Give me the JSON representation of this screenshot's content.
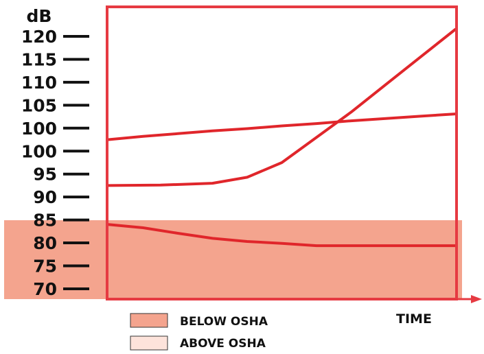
{
  "chart_data": {
    "type": "line",
    "ylabel": "dB",
    "xlabel": "TIME",
    "y_tick_labels": [
      "120",
      "115",
      "110",
      "105",
      "100",
      "100",
      "95",
      "90",
      "85",
      "80",
      "75",
      "70"
    ],
    "series": [
      {
        "points": [
          [
            0,
            97.5
          ],
          [
            0.1,
            98.2
          ],
          [
            0.2,
            98.8
          ],
          [
            0.3,
            99.4
          ],
          [
            0.4,
            99.9
          ],
          [
            0.5,
            100.5
          ],
          [
            0.6,
            101.0
          ],
          [
            0.7,
            101.6
          ],
          [
            0.8,
            102.1
          ],
          [
            0.9,
            102.6
          ],
          [
            1.0,
            103.1
          ]
        ]
      },
      {
        "points": [
          [
            0,
            87.5
          ],
          [
            0.15,
            87.6
          ],
          [
            0.3,
            88.0
          ],
          [
            0.4,
            89.3
          ],
          [
            0.5,
            92.5
          ],
          [
            0.6,
            98.0
          ],
          [
            0.7,
            103.5
          ],
          [
            0.8,
            109.5
          ],
          [
            0.9,
            115.5
          ],
          [
            1.0,
            121.5
          ]
        ]
      },
      {
        "points": [
          [
            0,
            79.0
          ],
          [
            0.1,
            78.3
          ],
          [
            0.2,
            77.1
          ],
          [
            0.3,
            76.0
          ],
          [
            0.4,
            75.3
          ],
          [
            0.5,
            74.9
          ],
          [
            0.6,
            74.4
          ],
          [
            0.7,
            74.4
          ],
          [
            0.8,
            74.4
          ],
          [
            0.9,
            74.4
          ],
          [
            1.0,
            74.4
          ]
        ]
      }
    ],
    "shaded_region": {
      "y_from": 70,
      "y_to": 85
    },
    "legend": [
      {
        "label": "BELOW OSHA",
        "color": "#f4a48e"
      },
      {
        "label": "ABOVE OSHA",
        "color": "#fde3db"
      }
    ],
    "colors": {
      "line": "#e0262b",
      "frame": "#e63a42",
      "shade": "#f4a48e",
      "text": "#111111"
    }
  }
}
